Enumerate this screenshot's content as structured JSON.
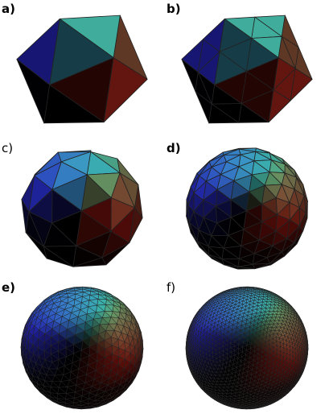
{
  "figure": {
    "panels": [
      {
        "label": "a)",
        "subdivision": 0,
        "shading": "flat-icosahedron"
      },
      {
        "label": "b)",
        "subdivision": 1,
        "shading": "flat-icosahedron"
      },
      {
        "label": "c)",
        "subdivision": 1,
        "shading": "sphere"
      },
      {
        "label": "d)",
        "subdivision": 2,
        "shading": "sphere"
      },
      {
        "label": "e)",
        "subdivision": 3,
        "shading": "sphere"
      },
      {
        "label": "f)",
        "subdivision": 4,
        "shading": "sphere"
      }
    ],
    "colors": {
      "x_axis_color": "#c81e14",
      "y_axis_color": "#32b478",
      "z_axis_color": "#2828c8",
      "edge_color": "#222222",
      "background": "#ffffff"
    }
  }
}
